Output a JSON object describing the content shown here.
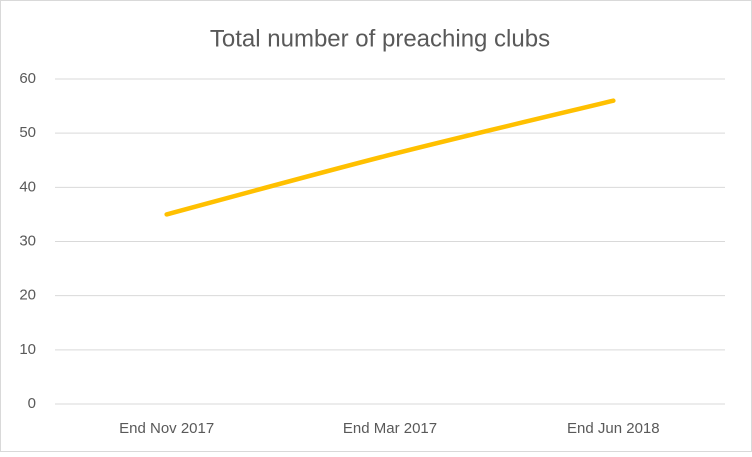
{
  "chart_data": {
    "type": "line",
    "title": "Total number of preaching clubs",
    "categories": [
      "End Nov 2017",
      "End Mar 2017",
      "End Jun 2018"
    ],
    "values": [
      35,
      46,
      56
    ],
    "color": "#ffc000",
    "ylim": [
      0,
      60
    ],
    "yticks": [
      0,
      10,
      20,
      30,
      40,
      50,
      60
    ],
    "grid": true
  }
}
